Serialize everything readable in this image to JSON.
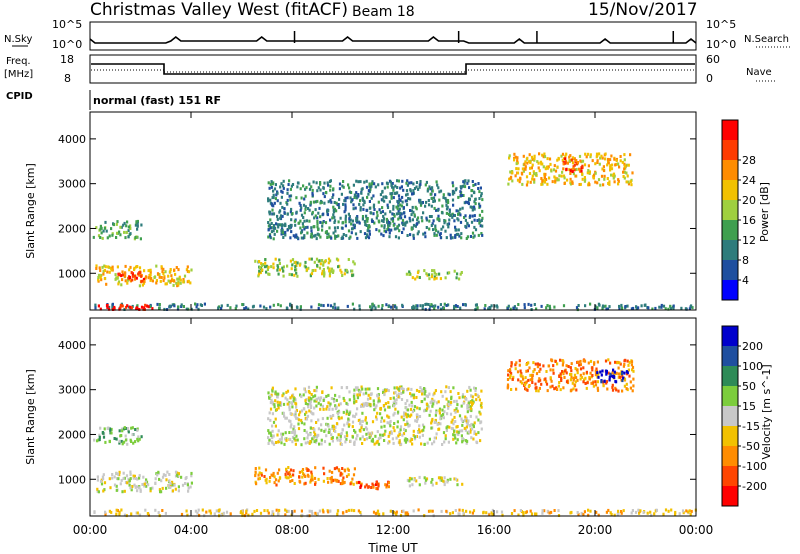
{
  "header": {
    "station": "Christmas Valley West (fitACF)",
    "beam": "Beam 18",
    "date": "15/Nov/2017"
  },
  "top_panels": {
    "nsky": {
      "label": "N.Sky",
      "right_label": "N.Search",
      "left_ticks": [
        "10^5",
        "10^0"
      ],
      "right_ticks": [
        "10^5",
        "10^0"
      ]
    },
    "freq": {
      "label_line1": "Freq.",
      "label_line2": "[MHz]",
      "right_label": "Nave",
      "left_ticks": [
        "18",
        "8"
      ],
      "right_ticks": [
        "60",
        "0"
      ]
    },
    "cpid": {
      "label": "CPID",
      "text": "normal (fast) 151 RF"
    }
  },
  "chart_data": [
    {
      "type": "heatmap",
      "name": "power",
      "ylabel": "Slant Range [km]",
      "xlabel": "Time UT",
      "x_ticks": [
        "00:00",
        "04:00",
        "08:00",
        "12:00",
        "16:00",
        "20:00",
        "00:00"
      ],
      "x_range_hours": [
        0,
        24
      ],
      "y_ticks": [
        1000,
        2000,
        3000,
        4000
      ],
      "ylim": [
        180,
        4600
      ],
      "colorbar": {
        "label": "Power [dB]",
        "ticks": [
          "4",
          "8",
          "12",
          "16",
          "20",
          "24",
          "28"
        ],
        "colors": [
          "#0000ff",
          "#1f4f9f",
          "#2e7c7c",
          "#3f9f4f",
          "#9fcf3f",
          "#f2c100",
          "#ff8c00",
          "#ff3b00",
          "#ff0000"
        ]
      },
      "regions": [
        {
          "t0": 0.1,
          "t1": 2.0,
          "r0": 1800,
          "r1": 2200,
          "level": 3
        },
        {
          "t0": 0.2,
          "t1": 4.0,
          "r0": 750,
          "r1": 1200,
          "level": 5
        },
        {
          "t0": 1.0,
          "t1": 2.2,
          "r0": 850,
          "r1": 1050,
          "level": 7
        },
        {
          "t0": 6.5,
          "t1": 10.5,
          "r0": 950,
          "r1": 1350,
          "level": 4
        },
        {
          "t0": 12.5,
          "t1": 14.7,
          "r0": 900,
          "r1": 1100,
          "level": 4
        },
        {
          "t0": 16.5,
          "t1": 21.5,
          "r0": 3000,
          "r1": 3700,
          "level": 5
        },
        {
          "t0": 18.7,
          "t1": 19.5,
          "r0": 3300,
          "r1": 3600,
          "level": 7
        },
        {
          "t0": 7.0,
          "t1": 15.5,
          "r0": 1800,
          "r1": 3100,
          "level": 2
        },
        {
          "t0": 0.0,
          "t1": 24.0,
          "r0": 220,
          "r1": 350,
          "level": 2
        },
        {
          "t0": 0.3,
          "t1": 2.5,
          "r0": 220,
          "r1": 320,
          "level": 8
        }
      ]
    },
    {
      "type": "heatmap",
      "name": "velocity",
      "ylabel": "Slant Range [km]",
      "xlabel": "Time UT",
      "x_ticks": [
        "00:00",
        "04:00",
        "08:00",
        "12:00",
        "16:00",
        "20:00",
        "00:00"
      ],
      "x_range_hours": [
        0,
        24
      ],
      "y_ticks": [
        1000,
        2000,
        3000,
        4000
      ],
      "ylim": [
        180,
        4600
      ],
      "colorbar": {
        "label": "Velocity [m s^-1]",
        "ticks": [
          "200",
          "100",
          "50",
          "15",
          "-15",
          "-50",
          "-100",
          "-200"
        ],
        "colors": [
          "#0000cc",
          "#1f4f9f",
          "#2e8b57",
          "#7ccd3c",
          "#c8c8c8",
          "#f2c100",
          "#ff8c00",
          "#ff4500",
          "#ff0000"
        ]
      },
      "regions": [
        {
          "t0": 0.1,
          "t1": 2.0,
          "r0": 1800,
          "r1": 2200,
          "level": 3
        },
        {
          "t0": 0.2,
          "t1": 4.0,
          "r0": 750,
          "r1": 1200,
          "level": 4
        },
        {
          "t0": 6.5,
          "t1": 10.5,
          "r0": 900,
          "r1": 1300,
          "level": 6
        },
        {
          "t0": 10.5,
          "t1": 11.8,
          "r0": 820,
          "r1": 980,
          "level": 7
        },
        {
          "t0": 12.5,
          "t1": 14.7,
          "r0": 880,
          "r1": 1080,
          "level": 4
        },
        {
          "t0": 16.5,
          "t1": 21.5,
          "r0": 3000,
          "r1": 3700,
          "level": 6
        },
        {
          "t0": 20.0,
          "t1": 21.3,
          "r0": 3200,
          "r1": 3500,
          "level": 0
        },
        {
          "t0": 7.0,
          "t1": 15.5,
          "r0": 1800,
          "r1": 3100,
          "level": 4
        },
        {
          "t0": 0.0,
          "t1": 24.0,
          "r0": 220,
          "r1": 350,
          "level": 5
        }
      ]
    }
  ]
}
